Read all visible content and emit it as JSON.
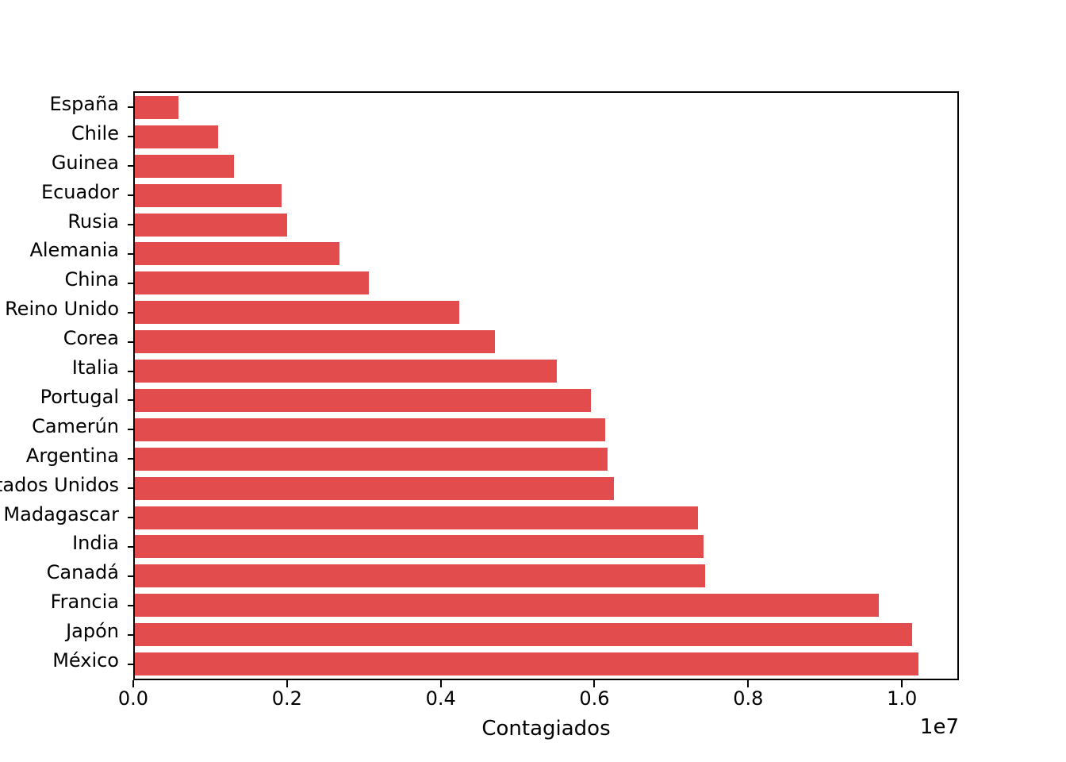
{
  "figure": {
    "background_color": "#ffffff",
    "axes_edge_color": "#000000",
    "text_color": "#000000"
  },
  "chart_data": {
    "type": "bar",
    "orientation": "horizontal",
    "title": "",
    "xlabel": "Contagiados",
    "ylabel": "",
    "offset_label": "1e7",
    "bar_color": "#e24c4c",
    "grid": false,
    "legend": false,
    "xlim": [
      0,
      10700000
    ],
    "xticks": {
      "values": [
        0,
        2000000,
        4000000,
        6000000,
        8000000,
        10000000
      ],
      "labels": [
        "0.0",
        "0.2",
        "0.4",
        "0.6",
        "0.8",
        "1.0"
      ]
    },
    "categories": [
      "España",
      "Chile",
      "Guinea",
      "Ecuador",
      "Rusia",
      "Alemania",
      "China",
      "Reino Unido",
      "Corea",
      "Italia",
      "Portugal",
      "Camerún",
      "Argentina",
      "Estados Unidos",
      "Madagascar",
      "India",
      "Canadá",
      "Francia",
      "Japón",
      "México"
    ],
    "values": [
      570000,
      1080000,
      1290000,
      1910000,
      1980000,
      2660000,
      3040000,
      4220000,
      4680000,
      5490000,
      5930000,
      6120000,
      6150000,
      6230000,
      7330000,
      7400000,
      7420000,
      9680000,
      10110000,
      10190000
    ]
  }
}
